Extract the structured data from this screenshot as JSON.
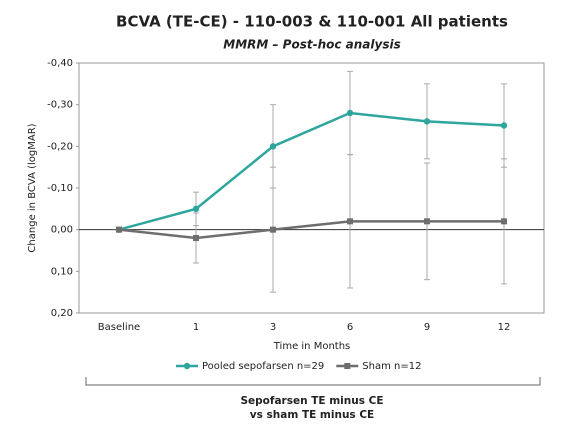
{
  "chart_data": {
    "type": "line",
    "title": "BCVA (TE-CE) - 110-003 & 110-001 All patients",
    "subtitle": "MMRM – Post-hoc analysis",
    "x_label": "Time in Months",
    "y_label": "Change in BCVA (logMAR)",
    "categories": [
      "Baseline",
      "1",
      "3",
      "6",
      "9",
      "12"
    ],
    "series": [
      {
        "name": "Pooled sepofarsen n=29",
        "color": "#2ea59d",
        "marker": "circle",
        "values": [
          0.0,
          -0.05,
          -0.2,
          -0.28,
          -0.26,
          -0.25
        ],
        "errors": [
          0.0,
          0.04,
          0.1,
          0.1,
          0.09,
          0.1
        ]
      },
      {
        "name": "Sham n=12",
        "color": "#6e6e6e",
        "marker": "square",
        "values": [
          0.0,
          0.02,
          0.0,
          -0.02,
          -0.02,
          -0.02
        ],
        "errors": [
          0.0,
          0.06,
          0.15,
          0.16,
          0.14,
          0.15
        ]
      }
    ],
    "ylim": [
      -0.4,
      0.2
    ],
    "y_inverted": true,
    "yticks": [
      {
        "value": -0.4,
        "label": "-0,40"
      },
      {
        "value": -0.3,
        "label": "-0,30"
      },
      {
        "value": -0.2,
        "label": "-0,20"
      },
      {
        "value": -0.1,
        "label": "-0,10"
      },
      {
        "value": 0,
        "label": "0,00"
      },
      {
        "value": 0.1,
        "label": "0,10"
      },
      {
        "value": 0.2,
        "label": "0,20"
      }
    ],
    "legend": "bottom",
    "annotation": [
      "Sepofarsen TE minus CE",
      "vs sham TE minus CE"
    ]
  }
}
